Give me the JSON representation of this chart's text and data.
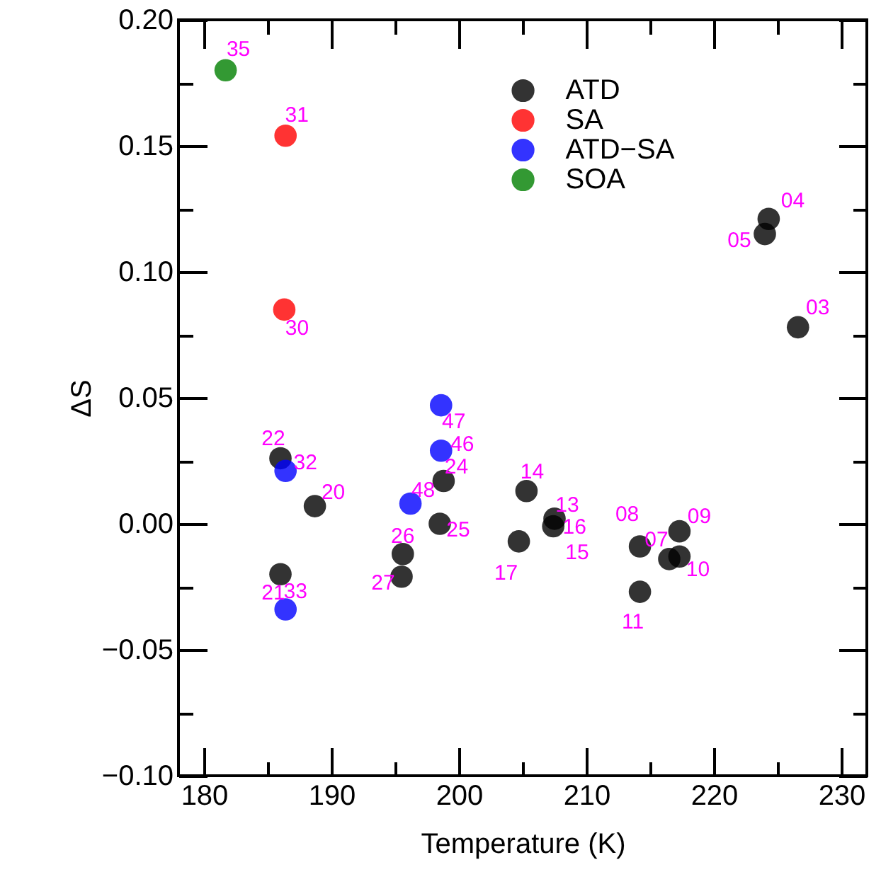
{
  "chart_data": {
    "type": "scatter",
    "xlabel": "Temperature (K)",
    "ylabel": "ΔS",
    "xlim": [
      178,
      232
    ],
    "ylim": [
      -0.1,
      0.2
    ],
    "xticks": [
      180,
      {
        "value": 185,
        "label": null
      },
      190,
      {
        "value": 195,
        "label": null
      },
      200,
      {
        "value": 205,
        "label": null
      },
      210,
      {
        "value": 215,
        "label": null
      },
      220,
      {
        "value": 225,
        "label": null
      },
      230
    ],
    "yticks": [
      {
        "value": -0.1,
        "label": "−0.10"
      },
      {
        "value": -0.075,
        "label": null
      },
      {
        "value": -0.05,
        "label": "−0.05"
      },
      {
        "value": -0.025,
        "label": null
      },
      {
        "value": 0,
        "label": "0.00"
      },
      {
        "value": 0.025,
        "label": null
      },
      {
        "value": 0.05,
        "label": "0.05"
      },
      {
        "value": 0.075,
        "label": null
      },
      {
        "value": 0.1,
        "label": "0.10"
      },
      {
        "value": 0.125,
        "label": null
      },
      {
        "value": 0.15,
        "label": "0.15"
      },
      {
        "value": 0.175,
        "label": null
      },
      {
        "value": 0.2,
        "label": "0.20"
      }
    ],
    "grid": false,
    "legend": "top",
    "marker": "circle",
    "series": [
      {
        "name": "ATD",
        "color": "#000000",
        "x": [
          226.6,
          224.3,
          224.0,
          216.5,
          214.2,
          217.3,
          217.3,
          214.2,
          207.5,
          205.3,
          null,
          207.4,
          204.7,
          188.7,
          186.0,
          186.0,
          198.8,
          198.5,
          195.6,
          195.5
        ],
        "values": [
          0.078,
          0.121,
          0.115,
          -0.014,
          -0.009,
          -0.003,
          -0.013,
          -0.027,
          0.002,
          0.013,
          null,
          -0.001,
          -0.007,
          0.007,
          -0.02,
          0.026,
          0.017,
          0.0,
          -0.012,
          -0.021
        ]
      },
      {
        "name": "SA",
        "color": "#ff0000",
        "x": [
          186.3,
          186.4
        ],
        "values": [
          0.085,
          0.154
        ]
      },
      {
        "name": "ATD−SA",
        "color": "#0000ff",
        "x": [
          186.4,
          186.4,
          198.6,
          198.6,
          196.2
        ],
        "values": [
          0.021,
          -0.034,
          0.029,
          0.047,
          0.008
        ]
      },
      {
        "name": "SOA",
        "color": "#008000",
        "x": [
          181.7
        ],
        "values": [
          0.18
        ]
      }
    ],
    "annotations": [
      {
        "text": "03",
        "x": 226.6,
        "y": 0.078
      },
      {
        "text": "04",
        "x": 224.3,
        "y": 0.121
      },
      {
        "text": "05",
        "x": 224.0,
        "y": 0.115
      },
      {
        "text": "07",
        "x": 216.5,
        "y": -0.014
      },
      {
        "text": "08",
        "x": 214.2,
        "y": -0.009
      },
      {
        "text": "09",
        "x": 217.3,
        "y": -0.003
      },
      {
        "text": "10",
        "x": 217.3,
        "y": -0.013
      },
      {
        "text": "11",
        "x": 214.2,
        "y": -0.027
      },
      {
        "text": "13",
        "x": 207.5,
        "y": 0.002
      },
      {
        "text": "14",
        "x": 205.3,
        "y": 0.013
      },
      {
        "text": "15",
        "x": 207.5,
        "y": -0.001
      },
      {
        "text": "16",
        "x": 207.4,
        "y": -0.001
      },
      {
        "text": "17",
        "x": 204.7,
        "y": -0.007
      },
      {
        "text": "20",
        "x": 188.7,
        "y": 0.007
      },
      {
        "text": "21",
        "x": 186.0,
        "y": -0.02
      },
      {
        "text": "22",
        "x": 186.0,
        "y": 0.026
      },
      {
        "text": "24",
        "x": 198.8,
        "y": 0.017
      },
      {
        "text": "25",
        "x": 198.5,
        "y": 0.0
      },
      {
        "text": "26",
        "x": 195.6,
        "y": -0.012
      },
      {
        "text": "27",
        "x": 195.5,
        "y": -0.021
      },
      {
        "text": "30",
        "x": 186.3,
        "y": 0.085
      },
      {
        "text": "31",
        "x": 186.4,
        "y": 0.154
      },
      {
        "text": "32",
        "x": 186.4,
        "y": 0.021
      },
      {
        "text": "33",
        "x": 186.4,
        "y": -0.034
      },
      {
        "text": "46",
        "x": 198.6,
        "y": 0.029
      },
      {
        "text": "47",
        "x": 198.6,
        "y": 0.047
      },
      {
        "text": "48",
        "x": 196.2,
        "y": 0.008
      },
      {
        "text": "35",
        "x": 181.7,
        "y": 0.18
      }
    ]
  }
}
